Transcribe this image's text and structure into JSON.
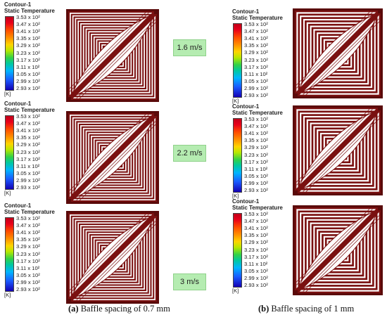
{
  "legend": {
    "title_line1": "Contour-1",
    "title_line2": "Static Temperature",
    "ticks": [
      "3.53 x 10²",
      "3.47 x 10²",
      "3.41 x 10²",
      "3.35 x 10²",
      "3.29 x 10²",
      "3.23 x 10²",
      "3.17 x 10²",
      "3.11 x 10²",
      "3.05 x 10²",
      "2.99 x 10²",
      "2.93 x 10²"
    ],
    "unit": "[K]"
  },
  "speeds": [
    "1.6 m/s",
    "2.2 m/s",
    "3 m/s"
  ],
  "captions": {
    "a_label": "(a)",
    "a_text": " Baffle spacing of 0.7 mm",
    "b_label": "(b)",
    "b_text": " Baffle spacing of 1 mm"
  },
  "colors": {
    "baffle": "#7a1010",
    "baffle_dark": "#5a0a0a",
    "gap": "#ffffff",
    "speed_box": "#b5ecb1"
  }
}
